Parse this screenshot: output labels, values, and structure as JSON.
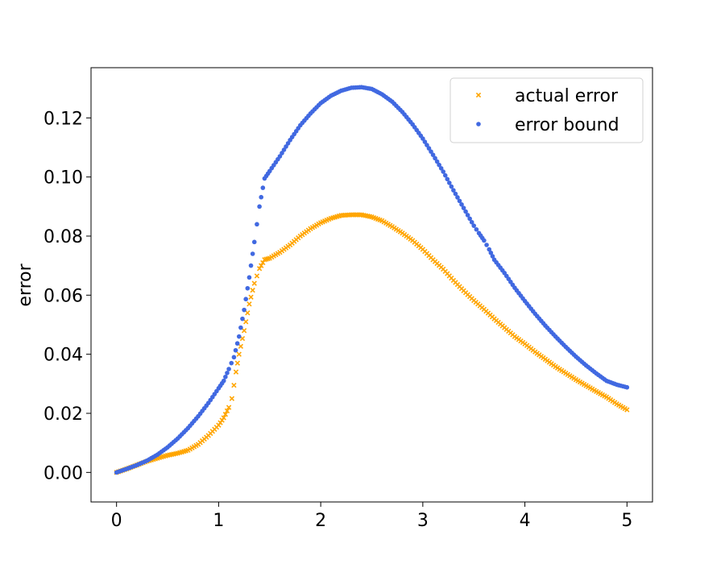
{
  "chart_data": {
    "type": "scatter",
    "title": "",
    "xlabel": "",
    "ylabel": "error",
    "xlim": [
      -0.25,
      5.25
    ],
    "ylim": [
      -0.01,
      0.137
    ],
    "xticks": [
      "0",
      "1",
      "2",
      "3",
      "4",
      "5"
    ],
    "yticks": [
      "0.00",
      "0.02",
      "0.04",
      "0.06",
      "0.08",
      "0.10",
      "0.12"
    ],
    "grid": false,
    "legend_position": "top-right",
    "series": [
      {
        "name": "actual error",
        "marker": "x",
        "color": "#ffa500",
        "points": [
          [
            0.0,
            0.0
          ],
          [
            0.1,
            0.0012
          ],
          [
            0.2,
            0.0025
          ],
          [
            0.3,
            0.0038
          ],
          [
            0.4,
            0.0048
          ],
          [
            0.5,
            0.0058
          ],
          [
            0.6,
            0.0065
          ],
          [
            0.7,
            0.0075
          ],
          [
            0.8,
            0.0095
          ],
          [
            0.9,
            0.0125
          ],
          [
            1.0,
            0.016
          ],
          [
            1.05,
            0.0185
          ],
          [
            1.1,
            0.022
          ],
          [
            1.13,
            0.025
          ],
          [
            1.17,
            0.034
          ],
          [
            1.2,
            0.04
          ],
          [
            1.25,
            0.048
          ],
          [
            1.3,
            0.057
          ],
          [
            1.35,
            0.064
          ],
          [
            1.4,
            0.069
          ],
          [
            1.45,
            0.072
          ],
          [
            1.5,
            0.0725
          ],
          [
            1.6,
            0.0745
          ],
          [
            1.7,
            0.077
          ],
          [
            1.8,
            0.08
          ],
          [
            1.9,
            0.0825
          ],
          [
            2.0,
            0.0845
          ],
          [
            2.1,
            0.086
          ],
          [
            2.2,
            0.087
          ],
          [
            2.3,
            0.0872
          ],
          [
            2.4,
            0.0872
          ],
          [
            2.5,
            0.0865
          ],
          [
            2.6,
            0.0852
          ],
          [
            2.7,
            0.0832
          ],
          [
            2.8,
            0.081
          ],
          [
            2.9,
            0.0785
          ],
          [
            3.0,
            0.0755
          ],
          [
            3.1,
            0.072
          ],
          [
            3.2,
            0.0688
          ],
          [
            3.3,
            0.065
          ],
          [
            3.4,
            0.0615
          ],
          [
            3.5,
            0.0582
          ],
          [
            3.6,
            0.0552
          ],
          [
            3.7,
            0.052
          ],
          [
            3.8,
            0.049
          ],
          [
            3.9,
            0.046
          ],
          [
            4.0,
            0.0435
          ],
          [
            4.1,
            0.0408
          ],
          [
            4.2,
            0.0383
          ],
          [
            4.3,
            0.0358
          ],
          [
            4.4,
            0.0336
          ],
          [
            4.5,
            0.0314
          ],
          [
            4.6,
            0.0294
          ],
          [
            4.7,
            0.0274
          ],
          [
            4.8,
            0.0255
          ],
          [
            4.9,
            0.0232
          ],
          [
            5.0,
            0.0212
          ]
        ]
      },
      {
        "name": "error bound",
        "marker": "o",
        "color": "#4169e1",
        "points": [
          [
            0.0,
            0.0
          ],
          [
            0.1,
            0.0012
          ],
          [
            0.2,
            0.0025
          ],
          [
            0.3,
            0.004
          ],
          [
            0.4,
            0.006
          ],
          [
            0.5,
            0.0085
          ],
          [
            0.6,
            0.0115
          ],
          [
            0.7,
            0.015
          ],
          [
            0.8,
            0.019
          ],
          [
            0.9,
            0.0235
          ],
          [
            1.0,
            0.0285
          ],
          [
            1.05,
            0.031
          ],
          [
            1.1,
            0.035
          ],
          [
            1.15,
            0.039
          ],
          [
            1.2,
            0.046
          ],
          [
            1.25,
            0.055
          ],
          [
            1.3,
            0.066
          ],
          [
            1.35,
            0.078
          ],
          [
            1.4,
            0.09
          ],
          [
            1.45,
            0.0995
          ],
          [
            1.5,
            0.102
          ],
          [
            1.6,
            0.107
          ],
          [
            1.7,
            0.1125
          ],
          [
            1.8,
            0.1175
          ],
          [
            1.9,
            0.1215
          ],
          [
            2.0,
            0.125
          ],
          [
            2.1,
            0.1275
          ],
          [
            2.2,
            0.1292
          ],
          [
            2.3,
            0.1302
          ],
          [
            2.4,
            0.1304
          ],
          [
            2.5,
            0.1298
          ],
          [
            2.6,
            0.128
          ],
          [
            2.7,
            0.1255
          ],
          [
            2.8,
            0.122
          ],
          [
            2.9,
            0.1178
          ],
          [
            3.0,
            0.113
          ],
          [
            3.1,
            0.1075
          ],
          [
            3.2,
            0.1018
          ],
          [
            3.3,
            0.0955
          ],
          [
            3.4,
            0.0895
          ],
          [
            3.5,
            0.0835
          ],
          [
            3.55,
            0.081
          ],
          [
            3.6,
            0.0785
          ],
          [
            3.65,
            0.0755
          ],
          [
            3.7,
            0.072
          ],
          [
            3.8,
            0.0675
          ],
          [
            3.9,
            0.0625
          ],
          [
            4.0,
            0.058
          ],
          [
            4.1,
            0.0537
          ],
          [
            4.2,
            0.0497
          ],
          [
            4.3,
            0.046
          ],
          [
            4.4,
            0.0425
          ],
          [
            4.5,
            0.0392
          ],
          [
            4.6,
            0.0362
          ],
          [
            4.7,
            0.0335
          ],
          [
            4.8,
            0.031
          ],
          [
            4.9,
            0.0297
          ],
          [
            5.0,
            0.0288
          ]
        ]
      }
    ]
  }
}
